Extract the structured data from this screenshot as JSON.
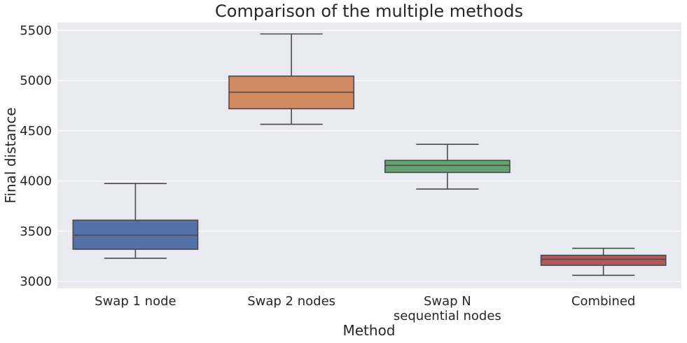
{
  "chart_data": {
    "type": "box",
    "title": "Comparison of the multiple methods",
    "xlabel": "Method",
    "ylabel": "Final distance",
    "ylim": [
      2930,
      5580
    ],
    "yticks": [
      3000,
      3500,
      4000,
      4500,
      5000,
      5500
    ],
    "grid": true,
    "categories": [
      {
        "label_lines": [
          "Swap 1 node"
        ],
        "color": "#5470a8",
        "whisker_low": 3230,
        "q1": 3320,
        "median": 3460,
        "q3": 3610,
        "whisker_high": 3975
      },
      {
        "label_lines": [
          "Swap 2 nodes"
        ],
        "color": "#d28a61",
        "whisker_low": 4565,
        "q1": 4720,
        "median": 4885,
        "q3": 5045,
        "whisker_high": 5465
      },
      {
        "label_lines": [
          "Swap N",
          "sequential nodes"
        ],
        "color": "#62a370",
        "whisker_low": 3920,
        "q1": 4085,
        "median": 4155,
        "q3": 4205,
        "whisker_high": 4365
      },
      {
        "label_lines": [
          "Combined"
        ],
        "color": "#b8575a",
        "whisker_low": 3060,
        "q1": 3160,
        "median": 3220,
        "q3": 3260,
        "whisker_high": 3330
      }
    ]
  }
}
